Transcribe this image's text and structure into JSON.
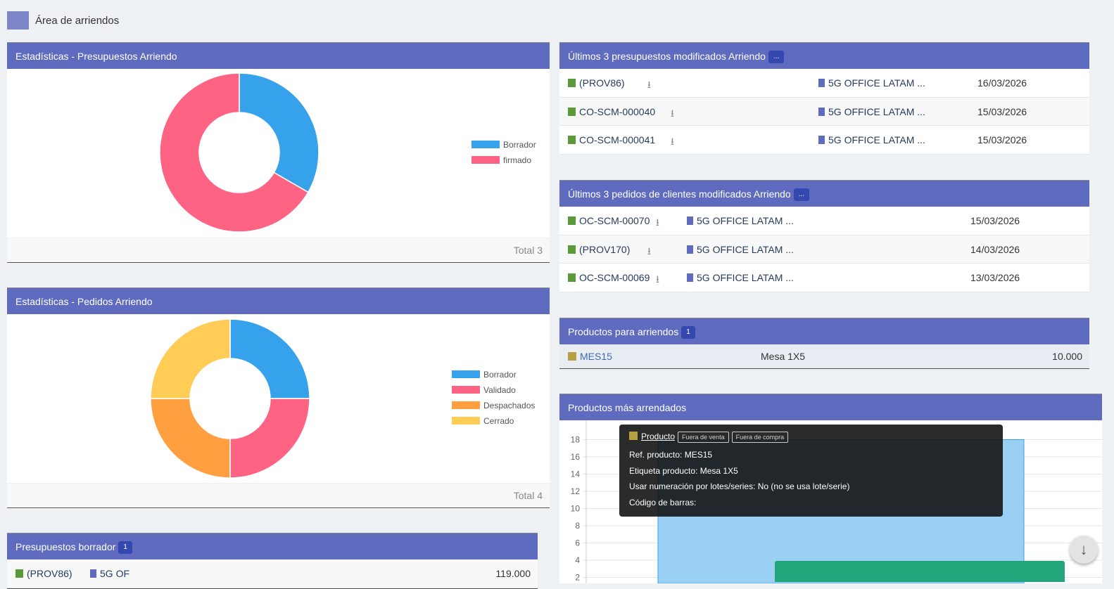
{
  "page": {
    "title": "Área de arriendos",
    "icon": "building-icon"
  },
  "stats_presupuestos": {
    "title": "Estadísticas - Presupuestos Arriendo",
    "total": "Total 3",
    "chart_data": {
      "type": "pie",
      "donut": true,
      "categories": [
        "Borrador",
        "firmado"
      ],
      "values": [
        1,
        2
      ],
      "colors": [
        "#36a2eb",
        "#ff6384"
      ],
      "legend": "right"
    }
  },
  "stats_pedidos": {
    "title": "Estadísticas - Pedidos Arriendo",
    "total": "Total 4",
    "chart_data": {
      "type": "pie",
      "donut": true,
      "categories": [
        "Borrador",
        "Validado",
        "Despachados",
        "Cerrado"
      ],
      "values": [
        1,
        1,
        1,
        1
      ],
      "colors": [
        "#36a2eb",
        "#ff6384",
        "#ff9f40",
        "#ffcd56"
      ],
      "legend": "right"
    }
  },
  "presupuestos_borrador": {
    "title": "Presupuestos borrador",
    "count": "1",
    "rows": [
      {
        "ref": "(PROV86)",
        "company": "5G OF",
        "amount": "119.000"
      }
    ]
  },
  "ultimos_presupuestos": {
    "title": "Últimos 3 presupuestos modificados Arriendo",
    "more": "...",
    "rows": [
      {
        "ref": "(PROV86)",
        "company": "5G OFFICE LATAM ...",
        "date": "16/03/2026"
      },
      {
        "ref": "CO-SCM-000040",
        "company": "5G OFFICE LATAM ...",
        "date": "15/03/2026"
      },
      {
        "ref": "CO-SCM-000041",
        "company": "5G OFFICE LATAM ...",
        "date": "15/03/2026"
      }
    ]
  },
  "ultimos_pedidos": {
    "title": "Últimos 3 pedidos de clientes modificados Arriendo",
    "more": "...",
    "rows": [
      {
        "ref": "OC-SCM-00070",
        "company": "5G OFFICE LATAM ...",
        "date": "15/03/2026"
      },
      {
        "ref": "(PROV170)",
        "company": "5G OFFICE LATAM ...",
        "date": "14/03/2026"
      },
      {
        "ref": "OC-SCM-00069",
        "company": "5G OFFICE LATAM ...",
        "date": "13/03/2026"
      }
    ]
  },
  "productos": {
    "title": "Productos para arriendos",
    "count": "1",
    "rows": [
      {
        "ref": "MES15",
        "label": "Mesa 1X5",
        "value": "10.000"
      }
    ]
  },
  "mas_arrendados": {
    "title": "Productos más arrendados",
    "chart_data": {
      "type": "bar",
      "categories": [
        ""
      ],
      "values": [
        18
      ],
      "yticks": [
        2,
        4,
        6,
        8,
        10,
        12,
        14,
        16,
        18
      ],
      "ylim": [
        0,
        18
      ],
      "grid": true,
      "color": "#9bd0f5"
    }
  },
  "tooltip": {
    "title": "Producto",
    "tags": [
      "Fuera de venta",
      "Fuera de compra"
    ],
    "lines": [
      "Ref. producto: MES15",
      "Etiqueta producto: Mesa 1X5",
      "Usar numeración por lotes/series: No (no se usa lote/serie)",
      "Código de barras:"
    ]
  }
}
